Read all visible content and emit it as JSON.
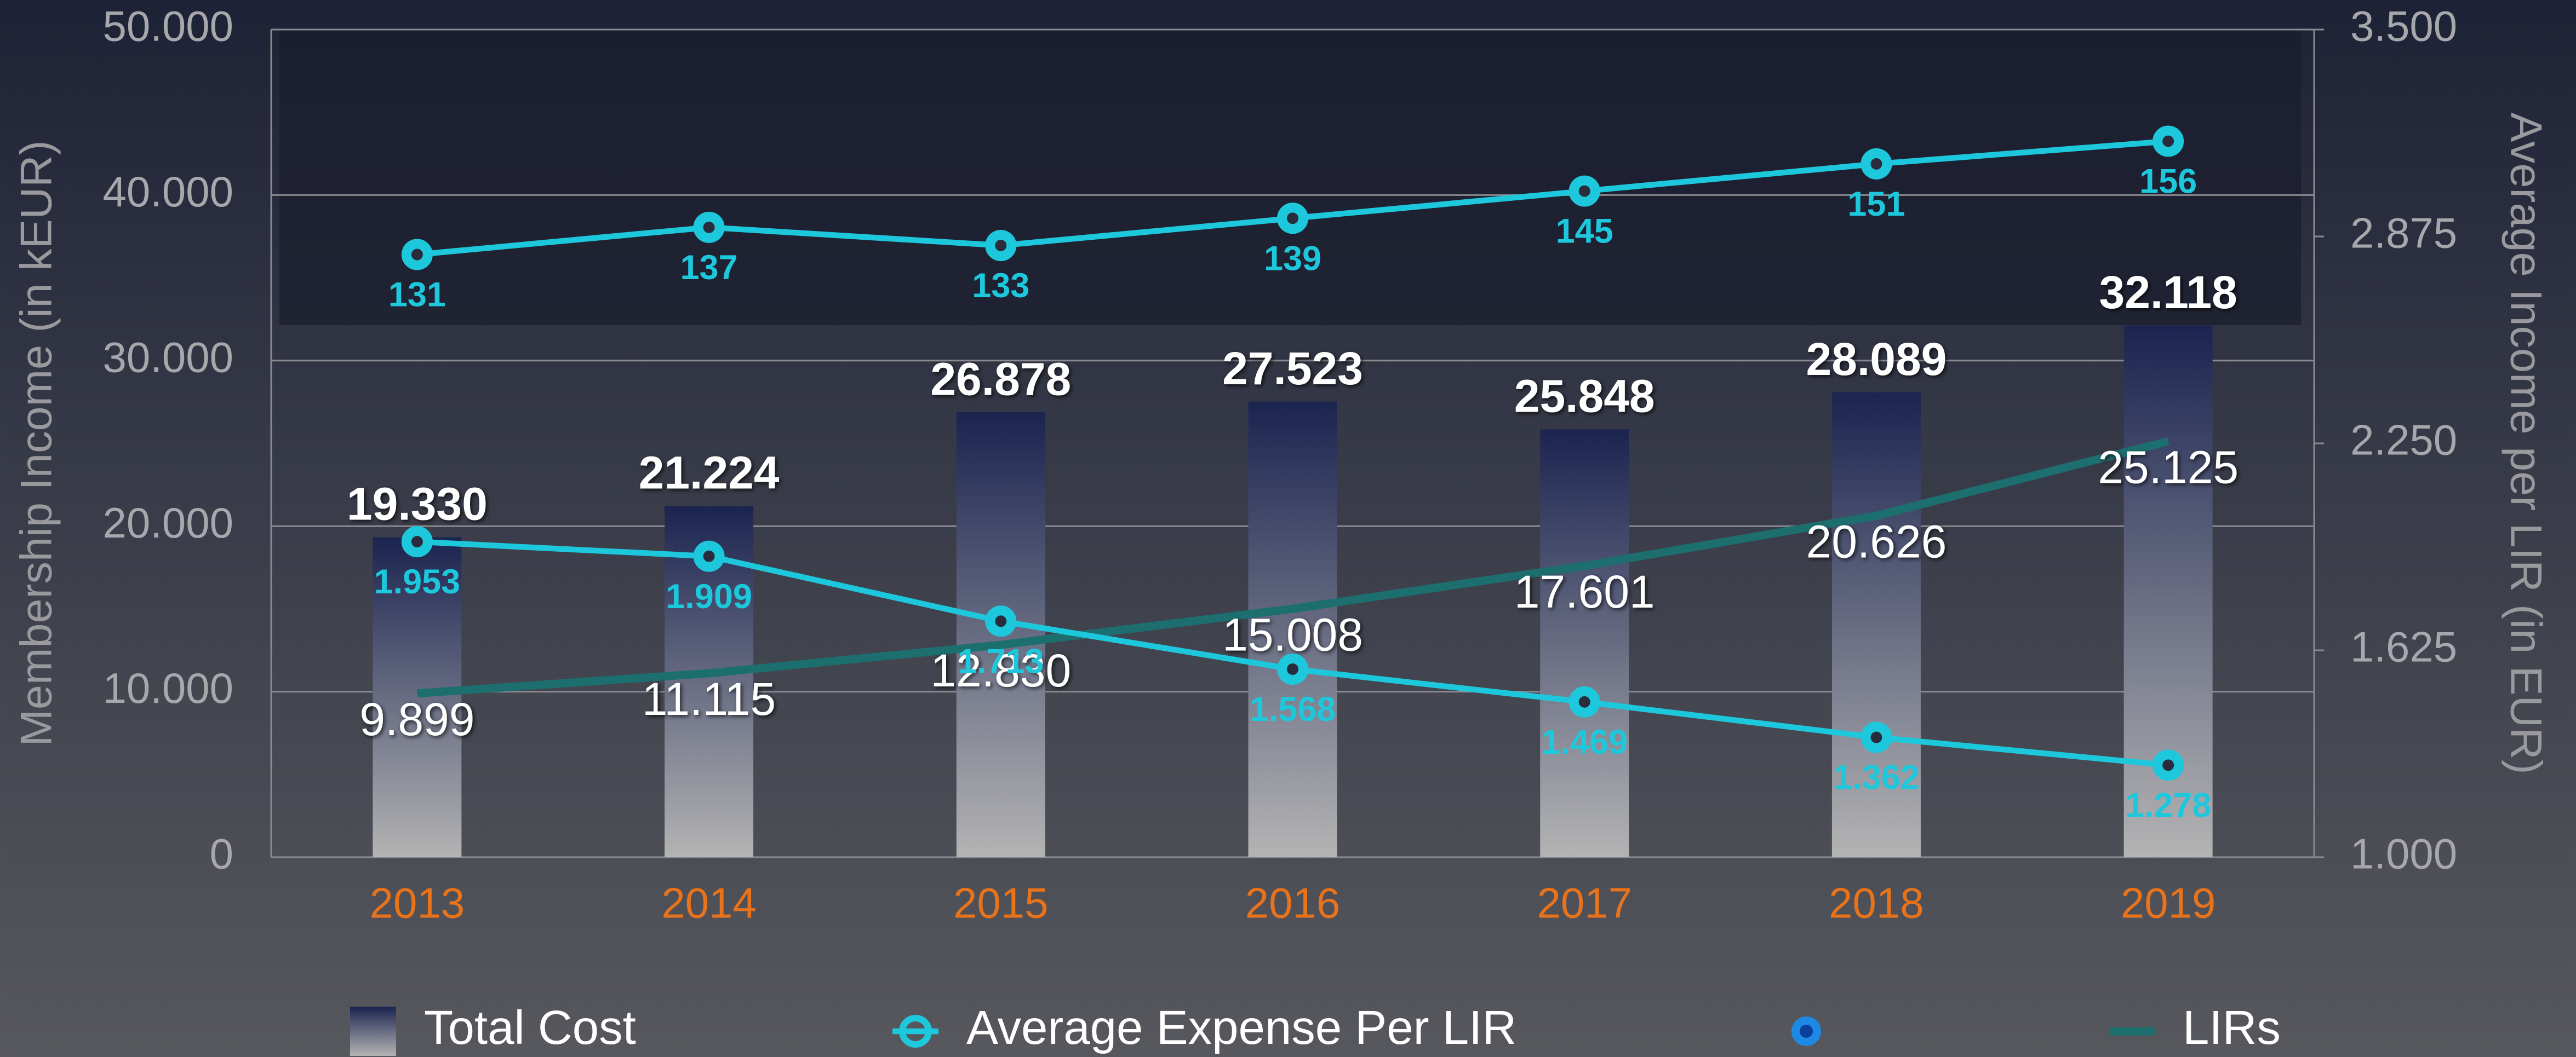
{
  "chart_data": {
    "type": "bar",
    "y_label": "Membership Income (in kEUR)",
    "y2_label": "Average Income per LIR (in EUR)",
    "categories": [
      "2013",
      "2014",
      "2015",
      "2016",
      "2017",
      "2018",
      "2019"
    ],
    "ylim": [
      0,
      50000
    ],
    "yticks": [
      0,
      {
        "value": 10000,
        "label": "10.000"
      },
      {
        "value": 20000,
        "label": "20.000"
      },
      {
        "value": 30000,
        "label": "30.000"
      },
      {
        "value": 40000,
        "label": "40.000"
      },
      {
        "value": 50000,
        "label": "50.000"
      }
    ],
    "y2lim": [
      1000,
      3500
    ],
    "y2ticks": [
      {
        "value": 1000,
        "label": "1.000"
      },
      {
        "value": 1625,
        "label": "1.625"
      },
      {
        "value": 2250,
        "label": "2.250"
      },
      {
        "value": 2875,
        "label": "2.875"
      },
      {
        "value": 3500,
        "label": "3.500"
      }
    ],
    "grid": true,
    "legend": "bottom",
    "series": [
      {
        "name": "Total Cost",
        "type": "bar",
        "color": "#1b2450",
        "values": [
          19330,
          21224,
          26878,
          27523,
          25848,
          28089,
          32118
        ],
        "value_labels": [
          "19.330",
          "21.224",
          "26.878",
          "27.523",
          "25.848",
          "28.089",
          "32.118"
        ]
      },
      {
        "name": "Average Expense Per LIR",
        "type": "line",
        "axis": "y2",
        "color": "#1ec8dc",
        "values": [
          1953,
          1909,
          1713,
          1568,
          1469,
          1362,
          1278
        ],
        "value_labels": [
          "1.953",
          "1.909",
          "1.713",
          "1.568",
          "1.469",
          "1.362",
          "1.278"
        ]
      },
      {
        "type": "line",
        "axis": "inset",
        "color": "#1ec8dc",
        "marker_color": "#1e88e5",
        "values": [
          131,
          137,
          133,
          139,
          145,
          151,
          156
        ]
      },
      {
        "name": "LIRs",
        "type": "line",
        "axis": "y",
        "color": "#1d6e6e",
        "values": [
          9899,
          11115,
          12830,
          15008,
          17601,
          20626,
          25125
        ],
        "value_labels": [
          "9.899",
          "11.115",
          "12.830",
          "15.008",
          "17.601",
          "20.626",
          "25.125"
        ]
      }
    ]
  }
}
